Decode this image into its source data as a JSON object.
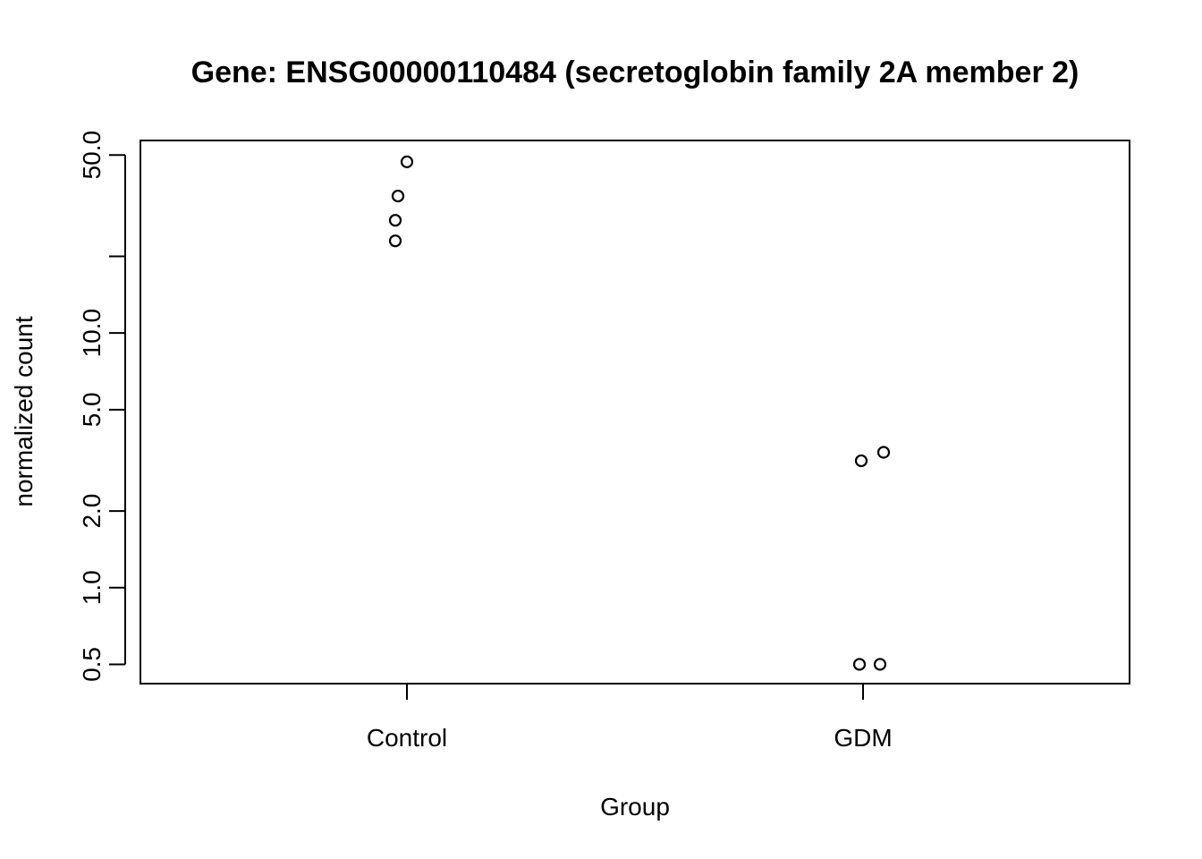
{
  "chart_data": {
    "type": "scatter",
    "title": "Gene:  ENSG00000110484 (secretoglobin family 2A member 2)",
    "xlabel": "Group",
    "ylabel": "normalized count",
    "categories": [
      "Control",
      "GDM"
    ],
    "y_scale": "log",
    "ylim": [
      0.42,
      57
    ],
    "y_ticks": [
      {
        "value": 0.5,
        "label": "0.5"
      },
      {
        "value": 1.0,
        "label": "1.0"
      },
      {
        "value": 2.0,
        "label": "2.0"
      },
      {
        "value": 5.0,
        "label": "5.0"
      },
      {
        "value": 10.0,
        "label": "10.0"
      },
      {
        "value": 20.0,
        "label": ""
      },
      {
        "value": 50.0,
        "label": "50.0"
      }
    ],
    "points": [
      {
        "group": "Control",
        "y": 47.0
      },
      {
        "group": "Control",
        "y": 34.5
      },
      {
        "group": "Control",
        "y": 27.7
      },
      {
        "group": "Control",
        "y": 23.0
      },
      {
        "group": "GDM",
        "y": 3.4
      },
      {
        "group": "GDM",
        "y": 3.15
      },
      {
        "group": "GDM",
        "y": 0.5
      },
      {
        "group": "GDM",
        "y": 0.5
      }
    ],
    "marker": "open-circle",
    "grid": false,
    "legend": "none",
    "colors": {
      "points": "#000000",
      "axes": "#000000",
      "background": "#ffffff"
    }
  }
}
